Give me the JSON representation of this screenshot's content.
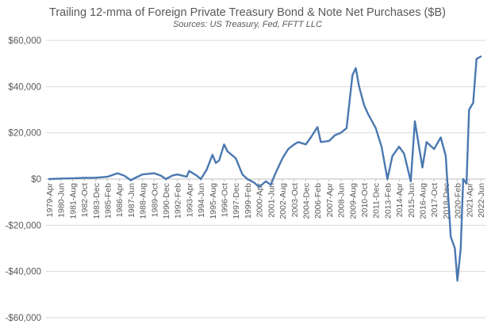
{
  "chart_data": {
    "type": "line",
    "title": "Trailing 12-mma of Foreign Private Treasury Bond & Note Net Purchases ($B)",
    "subtitle": "Sources: US Treasury, Fed, FFTT LLC",
    "ylim": [
      -60000,
      60000
    ],
    "y_ticks": [
      60000,
      40000,
      20000,
      0,
      -20000,
      -40000,
      -60000
    ],
    "y_tick_labels": [
      "$60,000",
      "$40,000",
      "$20,000",
      "$0",
      "-$20,000",
      "-$40,000",
      "-$60,000"
    ],
    "grid": true,
    "x_tick_labels": [
      "1979-Apr",
      "1980-Jun",
      "1981-Aug",
      "1982-Oct",
      "1983-Dec",
      "1985-Feb",
      "1986-Apr",
      "1987-Jun",
      "1988-Aug",
      "1989-Oct",
      "1990-Dec",
      "1992-Feb",
      "1993-Apr",
      "1994-Jun",
      "1995-Aug",
      "1996-Oct",
      "1997-Dec",
      "1999-Feb",
      "2000-Apr",
      "2001-Jun",
      "2002-Aug",
      "2003-Oct",
      "2004-Dec",
      "2006-Feb",
      "2007-Apr",
      "2008-Jun",
      "2009-Aug",
      "2010-Oct",
      "2011-Dec",
      "2013-Feb",
      "2014-Apr",
      "2015-Jun",
      "2016-Aug",
      "2017-Oct",
      "2018-Dec",
      "2020-Feb",
      "2021-Apr",
      "2022-Jun"
    ],
    "line_color": "#4a78b0",
    "series": [
      {
        "x": [
          "1979-Apr",
          "1980-Jun",
          "1981-Aug",
          "1982-Oct",
          "1983-Dec",
          "1985-Feb",
          "1986-Feb",
          "1986-Oct",
          "1987-Jun",
          "1988-Feb",
          "1988-Aug",
          "1989-Oct",
          "1990-Jun",
          "1990-Dec",
          "1991-Aug",
          "1992-Feb",
          "1993-Jan",
          "1993-Apr",
          "1994-Jan",
          "1994-Jun",
          "1995-Jan",
          "1995-Aug",
          "1995-Dec",
          "1996-Apr",
          "1996-Oct",
          "1997-Feb",
          "1997-Dec",
          "1998-Aug",
          "1999-Feb",
          "1999-Oct",
          "2000-Apr",
          "2000-Dec",
          "2001-Jun",
          "2001-Nov",
          "2002-Aug",
          "2003-Mar",
          "2003-Oct",
          "2004-Mar",
          "2004-Dec",
          "2005-Jun",
          "2006-Feb",
          "2006-Jun",
          "2007-Apr",
          "2007-Nov",
          "2008-Jun",
          "2009-Jan",
          "2009-Aug",
          "2009-Dec",
          "2010-Apr",
          "2010-Oct",
          "2011-Mar",
          "2011-Dec",
          "2012-Jul",
          "2013-Feb",
          "2013-Aug",
          "2014-Apr",
          "2014-Oct",
          "2015-Jun",
          "2015-Nov",
          "2016-Aug",
          "2017-Jan",
          "2017-Oct",
          "2018-Jun",
          "2018-Dec",
          "2019-Jun",
          "2019-Nov",
          "2020-Feb",
          "2020-Jun",
          "2020-Sep",
          "2021-Jan",
          "2021-Apr",
          "2021-Sep",
          "2022-Jan",
          "2022-Jun"
        ],
        "values": [
          0,
          200,
          300,
          500,
          600,
          1000,
          2500,
          1500,
          -500,
          1000,
          2000,
          2500,
          1500,
          0,
          1500,
          2000,
          1000,
          3500,
          1500,
          0,
          4000,
          10500,
          7000,
          8000,
          15000,
          12000,
          9000,
          2000,
          0,
          -1500,
          -3500,
          -1000,
          -2500,
          2000,
          9000,
          13000,
          15000,
          16000,
          15000,
          18000,
          22500,
          16000,
          16500,
          19000,
          20000,
          22000,
          45000,
          48000,
          40000,
          32000,
          28000,
          22000,
          14000,
          0,
          10000,
          14000,
          11000,
          -1000,
          25000,
          5000,
          16000,
          13000,
          18000,
          10000,
          -25000,
          -30000,
          -44000,
          -30000,
          0,
          -2000,
          30000,
          33000,
          52000,
          53000
        ]
      }
    ]
  }
}
